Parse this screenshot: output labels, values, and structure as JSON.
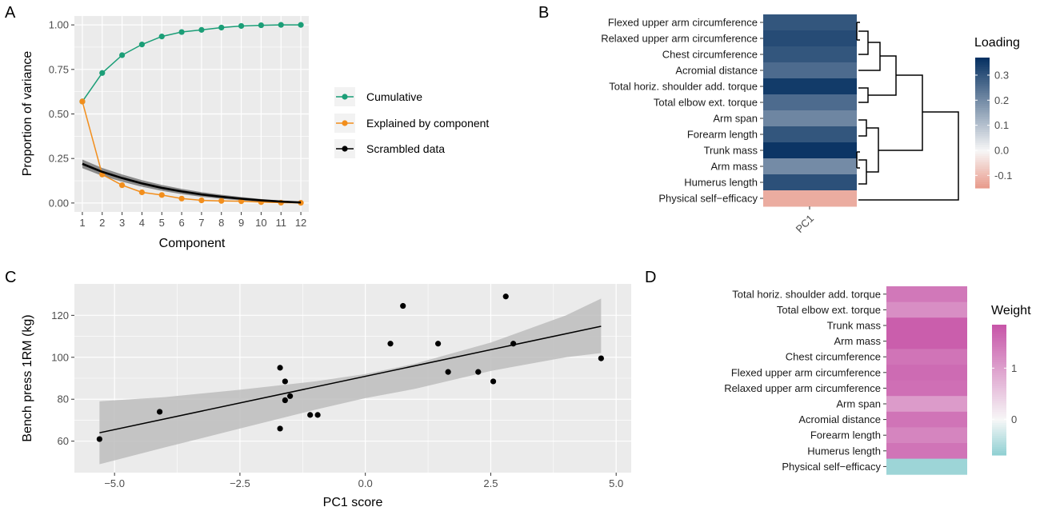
{
  "colors": {
    "cumulative": "#1b9e77",
    "explained": "#f28e1c",
    "scrambled": "#000000",
    "panel_bg": "#ebebeb",
    "grid": "#ffffff",
    "ribbon": "#bdbdbd",
    "loading_high": "#053061",
    "loading_mid": "#f7f7f7",
    "loading_low": "#e8998a",
    "weight_high": "#c755a8",
    "weight_mid": "#f7f7f7",
    "weight_low": "#8ecfd2"
  },
  "chart_data": [
    {
      "panel": "A",
      "type": "line",
      "xlabel": "Component",
      "ylabel": "Proportion of variance",
      "x": [
        1,
        2,
        3,
        4,
        5,
        6,
        7,
        8,
        9,
        10,
        11,
        12
      ],
      "xlim": [
        0.6,
        12.4
      ],
      "ylim": [
        -0.05,
        1.05
      ],
      "yticks": [
        "0.00",
        "0.25",
        "0.50",
        "0.75",
        "1.00"
      ],
      "ytick_values": [
        0,
        0.25,
        0.5,
        0.75,
        1.0
      ],
      "legend_position": "right",
      "series": [
        {
          "name": "Cumulative",
          "values": [
            0.57,
            0.73,
            0.83,
            0.89,
            0.935,
            0.96,
            0.972,
            0.985,
            0.994,
            0.998,
            1.0,
            1.0
          ]
        },
        {
          "name": "Explained by component",
          "values": [
            0.57,
            0.16,
            0.1,
            0.06,
            0.045,
            0.025,
            0.015,
            0.012,
            0.01,
            0.005,
            0.002,
            0.001
          ]
        },
        {
          "name": "Scrambled data",
          "values": [
            0.22,
            0.175,
            0.14,
            0.11,
            0.085,
            0.065,
            0.048,
            0.035,
            0.024,
            0.015,
            0.008,
            0.003
          ]
        }
      ]
    },
    {
      "panel": "B",
      "type": "heatmap",
      "column": "PC1",
      "legend_title": "Loading",
      "legend_ticks": [
        "0.3",
        "0.2",
        "0.1",
        "0.0",
        "-0.1"
      ],
      "legend_tick_values": [
        0.3,
        0.2,
        0.1,
        0.0,
        -0.1
      ],
      "range": [
        -0.15,
        0.37
      ],
      "rows": [
        "Flexed upper arm circumference",
        "Relaxed upper arm circumference",
        "Chest circumference",
        "Acromial distance",
        "Total horiz. shoulder add. torque",
        "Total elbow ext. torque",
        "Arm span",
        "Forearm length",
        "Trunk mass",
        "Arm mass",
        "Humerus length",
        "Physical self−efficacy"
      ],
      "values": [
        0.3,
        0.32,
        0.3,
        0.26,
        0.35,
        0.26,
        0.21,
        0.3,
        0.36,
        0.2,
        0.31,
        -0.12
      ]
    },
    {
      "panel": "C",
      "type": "scatter",
      "xlabel": "PC1 score",
      "ylabel": "Bench press 1RM (kg)",
      "xlim": [
        -5.8,
        5.3
      ],
      "ylim": [
        45,
        135
      ],
      "xticks": [
        "−5.0",
        "−2.5",
        "0.0",
        "2.5",
        "5.0"
      ],
      "xtick_values": [
        -5,
        -2.5,
        0,
        2.5,
        5
      ],
      "yticks": [
        "60",
        "80",
        "100",
        "120"
      ],
      "ytick_values": [
        60,
        80,
        100,
        120
      ],
      "x": [
        -5.3,
        -4.1,
        -1.7,
        -1.7,
        -1.6,
        -1.6,
        -1.5,
        -1.1,
        -0.95,
        0.5,
        0.75,
        1.45,
        1.65,
        2.25,
        2.55,
        2.8,
        2.95,
        4.7
      ],
      "y": [
        61,
        74,
        95,
        66,
        88.5,
        79.5,
        81.5,
        72.5,
        72.5,
        106.5,
        124.5,
        106.5,
        93,
        93,
        88.5,
        129,
        106.5,
        99.5
      ],
      "fit": {
        "x0": -5.3,
        "y0": 64,
        "x1": 4.7,
        "y1": 114.8
      },
      "ribbon": {
        "x": [
          -5.3,
          -4,
          -2.5,
          -1,
          0,
          1,
          2.5,
          4,
          4.7
        ],
        "lower": [
          49,
          57,
          66,
          75,
          80.5,
          85,
          93.5,
          100,
          102
        ],
        "upper": [
          79,
          81,
          84.5,
          88.5,
          92,
          97,
          107,
          120,
          128
        ]
      }
    },
    {
      "panel": "D",
      "type": "heatmap",
      "legend_title": "Weight",
      "legend_ticks": [
        "1",
        "0"
      ],
      "legend_tick_values": [
        1,
        0
      ],
      "range": [
        -0.7,
        1.85
      ],
      "rows": [
        "Total horiz. shoulder add. torque",
        "Total elbow ext. torque",
        "Trunk mass",
        "Arm mass",
        "Chest circumference",
        "Flexed upper arm circumference",
        "Relaxed upper arm circumference",
        "Arm span",
        "Acromial distance",
        "Forearm length",
        "Humerus length",
        "Physical self−efficacy"
      ],
      "values": [
        1.45,
        1.2,
        1.75,
        1.75,
        1.5,
        1.6,
        1.55,
        1.05,
        1.5,
        1.3,
        1.5,
        -0.6
      ]
    }
  ]
}
